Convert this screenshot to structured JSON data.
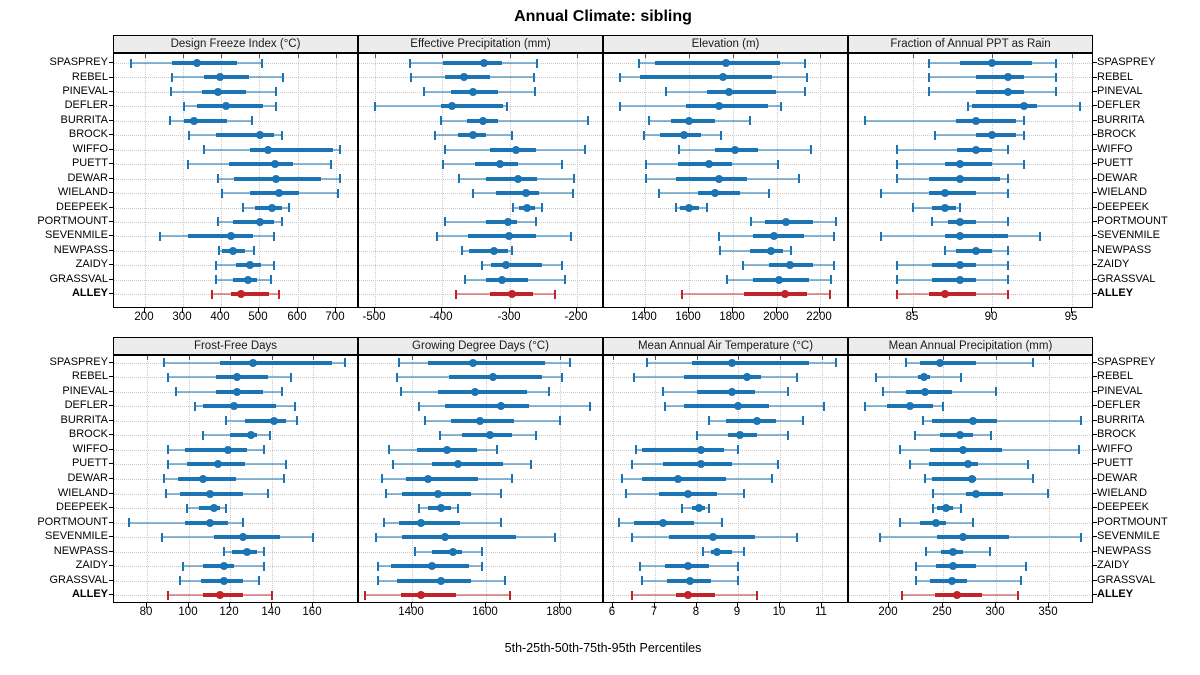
{
  "title": "Annual Climate: sibling",
  "footer": "5th-25th-50th-75th-95th Percentiles",
  "colors": {
    "series_blue": "#1b74b4",
    "series_blue_light": "rgba(27,116,180,0.5)",
    "highlight_red": "#c02428",
    "highlight_red_light": "rgba(192,36,40,0.45)",
    "header_bg": "#ececec",
    "grid": "#c8c8c8"
  },
  "chart_data": {
    "type": "scatter",
    "subtype": "trellis-percentile-interval-dotplot",
    "title": "Annual Climate: sibling",
    "footer": "5th-25th-50th-75th-95th Percentiles",
    "percentiles_shown": [
      "5th",
      "25th",
      "50th",
      "75th",
      "95th"
    ],
    "grid": "dotted",
    "layout": {
      "rows": 2,
      "cols": 4
    },
    "sites": [
      "SPASPREY",
      "REBEL",
      "PINEVAL",
      "DEFLER",
      "BURRITA",
      "BROCK",
      "WIFFO",
      "PUETT",
      "DEWAR",
      "WIELAND",
      "DEEPEEK",
      "PORTMOUNT",
      "SEVENMILE",
      "NEWPASS",
      "ZAIDY",
      "GRASSVAL",
      "ALLEY"
    ],
    "highlight_site": "ALLEY",
    "panels": [
      {
        "title": "Design Freeze Index (°C)",
        "xlim": [
          120,
          760
        ],
        "ticks": [
          200,
          300,
          400,
          500,
          600,
          700
        ],
        "tick_labels": [
          "200",
          "300",
          "400",
          "500",
          "600",
          "700"
        ],
        "values": [
          [
            163,
            271,
            337,
            441,
            507
          ],
          [
            271,
            355,
            396,
            473,
            561
          ],
          [
            268,
            349,
            391,
            466,
            542
          ],
          [
            302,
            337,
            413,
            510,
            542
          ],
          [
            267,
            303,
            330,
            416,
            480
          ],
          [
            315,
            386,
            501,
            538,
            560
          ],
          [
            355,
            476,
            523,
            691,
            711
          ],
          [
            313,
            421,
            541,
            588,
            687
          ],
          [
            392,
            434,
            542,
            661,
            711
          ],
          [
            401,
            475,
            550,
            604,
            706
          ],
          [
            458,
            489,
            532,
            559,
            576
          ],
          [
            392,
            432,
            502,
            538,
            560
          ],
          [
            239,
            313,
            425,
            482,
            538
          ],
          [
            395,
            401,
            432,
            462,
            486
          ],
          [
            386,
            438,
            475,
            504,
            537
          ],
          [
            386,
            432,
            471,
            495,
            531
          ],
          [
            377,
            425,
            451,
            525,
            552
          ]
        ]
      },
      {
        "title": "Effective Precipitation (mm)",
        "xlim": [
          -524,
          -160
        ],
        "ticks": [
          -500,
          -400,
          -300,
          -200
        ],
        "tick_labels": [
          "-500",
          "-400",
          "-300",
          "-200"
        ],
        "values": [
          [
            -448,
            -399,
            -339,
            -312,
            -260
          ],
          [
            -447,
            -396,
            -368,
            -329,
            -264
          ],
          [
            -428,
            -388,
            -354,
            -318,
            -262
          ],
          [
            -500,
            -402,
            -386,
            -310,
            -304
          ],
          [
            -402,
            -363,
            -340,
            -318,
            -184
          ],
          [
            -411,
            -377,
            -355,
            -335,
            -297
          ],
          [
            -396,
            -330,
            -291,
            -261,
            -188
          ],
          [
            -400,
            -351,
            -314,
            -288,
            -223
          ],
          [
            -375,
            -335,
            -288,
            -260,
            -204
          ],
          [
            -355,
            -320,
            -276,
            -257,
            -206
          ],
          [
            -296,
            -286,
            -275,
            -263,
            -252
          ],
          [
            -396,
            -336,
            -303,
            -290,
            -261
          ],
          [
            -408,
            -362,
            -301,
            -261,
            -209
          ],
          [
            -371,
            -360,
            -324,
            -302,
            -297
          ],
          [
            -341,
            -328,
            -305,
            -252,
            -222
          ],
          [
            -367,
            -335,
            -312,
            -273,
            -218
          ],
          [
            -380,
            -329,
            -297,
            -266,
            -233
          ]
        ]
      },
      {
        "title": "Elevation (m)",
        "xlim": [
          1210,
          2332
        ],
        "ticks": [
          1400,
          1600,
          1800,
          2000,
          2200
        ],
        "tick_labels": [
          "1400",
          "1600",
          "1800",
          "2000",
          "2200"
        ],
        "values": [
          [
            1370,
            1445,
            1770,
            2015,
            2130
          ],
          [
            1285,
            1375,
            1755,
            1980,
            2140
          ],
          [
            1495,
            1680,
            1780,
            2000,
            2130
          ],
          [
            1285,
            1585,
            1735,
            1960,
            2020
          ],
          [
            1415,
            1515,
            1600,
            1720,
            1880
          ],
          [
            1395,
            1465,
            1575,
            1655,
            1745
          ],
          [
            1555,
            1720,
            1810,
            1915,
            2160
          ],
          [
            1400,
            1550,
            1690,
            1795,
            2005
          ],
          [
            1400,
            1540,
            1735,
            1865,
            2105
          ],
          [
            1460,
            1640,
            1720,
            1835,
            1965
          ],
          [
            1540,
            1560,
            1600,
            1645,
            1680
          ],
          [
            1885,
            1945,
            2045,
            2165,
            2270
          ],
          [
            1735,
            1890,
            1990,
            2125,
            2265
          ],
          [
            1740,
            1880,
            1975,
            2030,
            2065
          ],
          [
            1845,
            1965,
            2060,
            2165,
            2265
          ],
          [
            1775,
            1890,
            2010,
            2150,
            2250
          ],
          [
            1565,
            1850,
            2040,
            2140,
            2245
          ]
        ]
      },
      {
        "title": "Fraction of Annual PPT as Rain",
        "xlim": [
          81,
          96.4
        ],
        "ticks": [
          85,
          90,
          95
        ],
        "tick_labels": [
          "85",
          "90",
          "95"
        ],
        "values": [
          [
            86,
            88,
            90,
            92.5,
            94
          ],
          [
            86,
            89,
            91,
            92,
            94
          ],
          [
            86,
            89,
            91,
            92,
            94
          ],
          [
            88.5,
            88.7,
            92,
            92.8,
            95.5
          ],
          [
            82,
            87.7,
            89,
            91.5,
            92
          ],
          [
            86.4,
            89,
            90,
            91.5,
            92
          ],
          [
            84,
            87.8,
            89,
            90,
            91
          ],
          [
            84,
            87,
            88,
            90,
            92
          ],
          [
            84,
            86,
            88,
            90.5,
            91
          ],
          [
            83,
            86,
            87,
            89,
            91
          ],
          [
            85,
            86.2,
            87,
            87.7,
            88
          ],
          [
            86.2,
            87.2,
            88,
            89,
            91
          ],
          [
            83,
            87,
            88,
            91,
            93
          ],
          [
            87,
            87.7,
            89,
            90,
            91
          ],
          [
            84,
            86.2,
            88,
            89,
            91
          ],
          [
            84,
            86.2,
            88,
            89,
            91
          ],
          [
            84,
            86,
            87,
            89,
            91
          ]
        ]
      },
      {
        "title": "Frost-Free Days",
        "xlim": [
          64,
          182
        ],
        "ticks": [
          80,
          100,
          120,
          140,
          160
        ],
        "tick_labels": [
          "80",
          "100",
          "120",
          "140",
          "160"
        ],
        "values": [
          [
            88,
            115,
            131,
            169,
            175
          ],
          [
            90,
            113,
            123,
            138,
            149
          ],
          [
            94,
            113,
            123,
            136,
            145
          ],
          [
            103,
            107,
            122,
            142,
            151
          ],
          [
            118,
            127,
            141,
            147,
            152
          ],
          [
            107,
            120,
            130,
            133,
            139
          ],
          [
            90,
            98,
            119,
            128,
            136
          ],
          [
            90,
            99,
            114,
            127,
            147
          ],
          [
            88,
            95,
            107,
            123,
            146
          ],
          [
            89,
            96,
            110,
            126,
            138
          ],
          [
            99,
            105,
            112,
            115,
            118
          ],
          [
            71,
            98,
            110,
            119,
            126
          ],
          [
            87,
            112,
            126,
            144,
            160
          ],
          [
            117,
            121,
            128,
            133,
            136
          ],
          [
            97,
            107,
            117,
            122,
            136
          ],
          [
            96,
            106,
            117,
            126,
            134
          ],
          [
            90,
            107,
            115,
            126,
            140
          ]
        ]
      },
      {
        "title": "Growing Degree Days (°C)",
        "xlim": [
          1258,
          1918
        ],
        "ticks": [
          1400,
          1600,
          1800
        ],
        "tick_labels": [
          "1400",
          "1600",
          "1800"
        ],
        "values": [
          [
            1365,
            1445,
            1565,
            1760,
            1825
          ],
          [
            1360,
            1500,
            1620,
            1750,
            1805
          ],
          [
            1370,
            1470,
            1570,
            1710,
            1770
          ],
          [
            1420,
            1490,
            1640,
            1715,
            1880
          ],
          [
            1435,
            1505,
            1585,
            1675,
            1800
          ],
          [
            1475,
            1535,
            1610,
            1670,
            1735
          ],
          [
            1340,
            1415,
            1495,
            1575,
            1630
          ],
          [
            1350,
            1455,
            1525,
            1645,
            1720
          ],
          [
            1320,
            1385,
            1445,
            1580,
            1670
          ],
          [
            1330,
            1375,
            1470,
            1560,
            1640
          ],
          [
            1420,
            1445,
            1480,
            1505,
            1525
          ],
          [
            1325,
            1365,
            1425,
            1530,
            1640
          ],
          [
            1305,
            1375,
            1490,
            1680,
            1785
          ],
          [
            1410,
            1455,
            1510,
            1535,
            1590
          ],
          [
            1310,
            1345,
            1455,
            1555,
            1590
          ],
          [
            1310,
            1360,
            1480,
            1560,
            1650
          ],
          [
            1275,
            1370,
            1425,
            1520,
            1665
          ]
        ]
      },
      {
        "title": "Mean Annual Air Temperature (°C)",
        "xlim": [
          5.78,
          11.66
        ],
        "ticks": [
          6,
          7,
          8,
          9,
          10,
          11
        ],
        "tick_labels": [
          "6",
          "7",
          "8",
          "9",
          "10",
          "11"
        ],
        "values": [
          [
            6.8,
            7.9,
            8.85,
            10.7,
            11.35
          ],
          [
            6.5,
            7.7,
            9.2,
            9.55,
            10.4
          ],
          [
            7.2,
            8.0,
            8.85,
            9.4,
            10.2
          ],
          [
            7.25,
            7.7,
            9.0,
            9.75,
            11.05
          ],
          [
            8.3,
            8.7,
            9.45,
            9.9,
            10.55
          ],
          [
            8.0,
            8.75,
            9.05,
            9.45,
            10.2
          ],
          [
            6.55,
            6.7,
            8.1,
            8.65,
            9.0
          ],
          [
            6.45,
            7.2,
            8.1,
            8.85,
            9.95
          ],
          [
            6.2,
            6.7,
            7.55,
            8.7,
            9.8
          ],
          [
            6.3,
            7.1,
            7.8,
            8.5,
            9.15
          ],
          [
            7.65,
            7.9,
            8.05,
            8.2,
            8.3
          ],
          [
            6.15,
            6.5,
            7.2,
            7.95,
            8.6
          ],
          [
            6.45,
            7.35,
            8.4,
            9.4,
            10.4
          ],
          [
            8.15,
            8.35,
            8.5,
            8.85,
            9.15
          ],
          [
            6.65,
            7.25,
            7.8,
            8.3,
            9.0
          ],
          [
            6.7,
            7.3,
            7.85,
            8.35,
            9.0
          ],
          [
            6.45,
            7.5,
            7.8,
            8.45,
            9.45
          ]
        ]
      },
      {
        "title": "Mean Annual Precipitation (mm)",
        "xlim": [
          162,
          392
        ],
        "ticks": [
          200,
          250,
          300,
          350
        ],
        "tick_labels": [
          "200",
          "250",
          "300",
          "350"
        ],
        "values": [
          [
            215,
            229,
            247,
            281,
            335
          ],
          [
            187,
            227,
            232,
            238,
            267
          ],
          [
            194,
            215,
            233,
            259,
            300
          ],
          [
            177,
            198,
            219,
            241,
            250
          ],
          [
            231,
            240,
            278,
            301,
            380
          ],
          [
            224,
            247,
            266,
            278,
            295
          ],
          [
            210,
            238,
            269,
            306,
            378
          ],
          [
            219,
            237,
            274,
            283,
            330
          ],
          [
            233,
            240,
            277,
            281,
            335
          ],
          [
            241,
            272,
            281,
            307,
            349
          ],
          [
            241,
            245,
            253,
            260,
            267
          ],
          [
            210,
            229,
            244,
            253,
            278
          ],
          [
            191,
            245,
            269,
            312,
            380
          ],
          [
            234,
            248,
            260,
            269,
            294
          ],
          [
            225,
            244,
            260,
            281,
            328
          ],
          [
            225,
            238,
            259,
            273,
            323
          ],
          [
            212,
            243,
            263,
            287,
            321
          ]
        ]
      }
    ]
  }
}
